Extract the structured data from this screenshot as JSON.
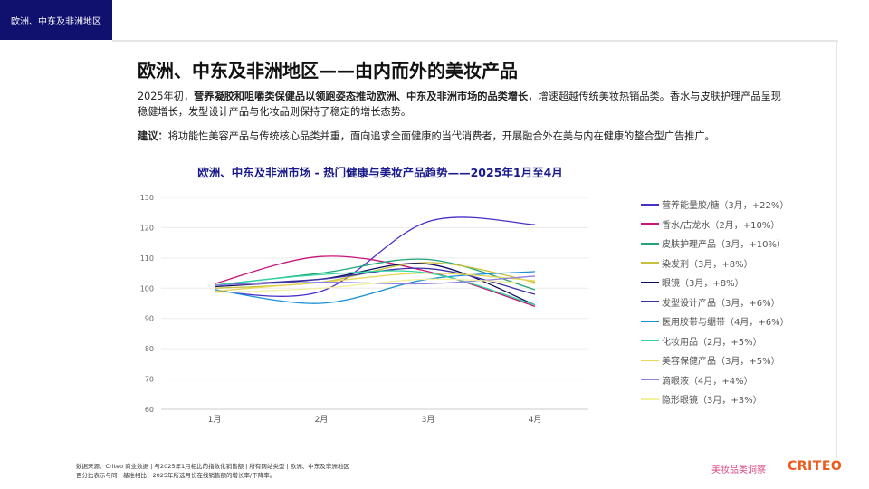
{
  "tag": "欧洲、中东及非洲地区",
  "title": "欧洲、中东及非洲地区——由内而外的美妆产品",
  "para1_prefix": "2025年初，",
  "para1_bold": "营养凝胶和咀嚼类保健品以领跑姿态推动欧洲、中东及非洲市场的品类增长",
  "para1_rest": "，增速超越传统美妆热销品类。香水与皮肤护理产品呈现稳健增长，发型设计产品与化妆品则保持了稳定的增长态势。",
  "advice_label": "建议：",
  "advice_text": "将功能性美容产品与传统核心品类并重，面向追求全面健康的当代消费者，开展融合外在美与内在健康的整合型广告推广。",
  "footer_line1": "数据来源：Criteo 商业数据 | 与2025年1月相比的指数化销售额 | 所有网站类型 | 欧洲、中东及非洲地区",
  "footer_line2": "百分比表示与同一基准相比，2025年所选月份在线销售额的增长率/下降率。",
  "brand_text": "美妆品类洞察",
  "logo_text": "CRITEO",
  "chart_data": {
    "type": "line",
    "title": "欧洲、中东及非洲市场 - 热门健康与美妆产品趋势——2025年1月至4月",
    "categories": [
      "1月",
      "2月",
      "3月",
      "4月"
    ],
    "ylim": [
      60,
      130
    ],
    "yticks": [
      60,
      70,
      80,
      90,
      100,
      110,
      120,
      130
    ],
    "grid": true,
    "legend": "right",
    "series": [
      {
        "name": "营养能量胶/糖（3月，+22%）",
        "color": "#4a2fc8",
        "values": [
          99,
          99,
          122,
          121
        ]
      },
      {
        "name": "香水/古龙水（2月，+10%）",
        "color": "#c8157a",
        "values": [
          101.5,
          110.5,
          105.5,
          94
        ]
      },
      {
        "name": "皮肤护理产品（3月，+10%）",
        "color": "#20a57a",
        "values": [
          101,
          105,
          109.5,
          99.5
        ]
      },
      {
        "name": "染发剂（3月，+8%）",
        "color": "#c9bf3a",
        "values": [
          100,
          102,
          108.5,
          102
        ]
      },
      {
        "name": "眼镜（3月，+8%）",
        "color": "#0d0d5e",
        "values": [
          100.5,
          103,
          108,
          94.5
        ]
      },
      {
        "name": "发型设计产品（3月，+6%）",
        "color": "#3c32a8",
        "values": [
          101,
          103,
          106.5,
          98
        ]
      },
      {
        "name": "医用胶带与绷带（4月，+6%）",
        "color": "#1a8fd8",
        "values": [
          99.5,
          95,
          103,
          105.5
        ]
      },
      {
        "name": "化妆用品（2月，+5%）",
        "color": "#2fd6a0",
        "values": [
          101,
          104.5,
          105,
          94.5
        ]
      },
      {
        "name": "美容保健产品（3月，+5%）",
        "color": "#e8d85a",
        "values": [
          99,
          102,
          105,
          102.5
        ]
      },
      {
        "name": "滴眼液（4月，+4%）",
        "color": "#9080e0",
        "values": [
          101,
          102,
          101.5,
          104
        ]
      },
      {
        "name": "隐形眼镜（3月，+3%）",
        "color": "#f3ef9a",
        "values": [
          98.5,
          100,
          103,
          101.5
        ]
      }
    ]
  }
}
